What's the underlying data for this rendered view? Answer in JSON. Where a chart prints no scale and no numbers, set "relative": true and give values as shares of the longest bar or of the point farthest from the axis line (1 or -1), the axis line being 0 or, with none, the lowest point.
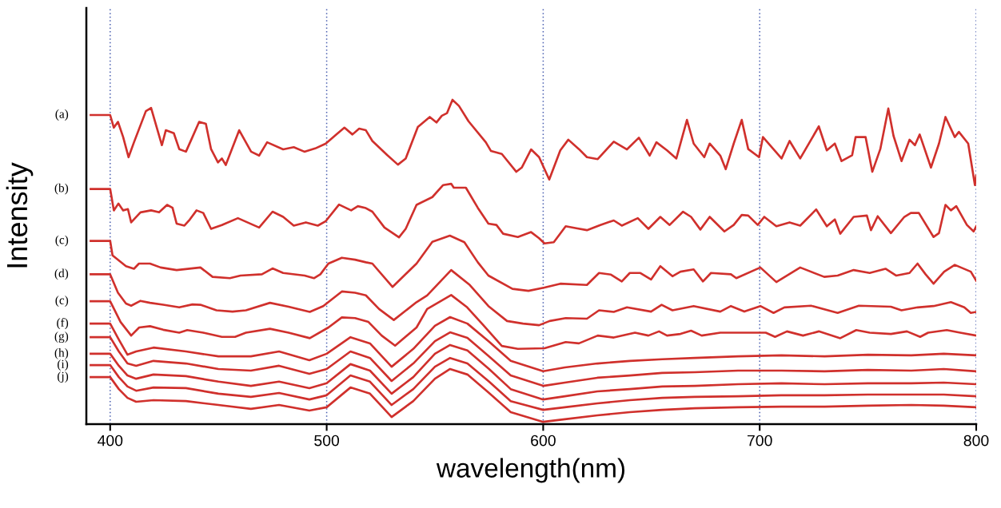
{
  "chart_data": {
    "type": "line",
    "relative": true,
    "xlabel": "wavelength(nm)",
    "ylabel": "Intensity",
    "xlim": [
      389,
      800
    ],
    "xticks": [
      400,
      500,
      600,
      700,
      800
    ],
    "grid": "x",
    "x": [
      391,
      400,
      404,
      408,
      412,
      420,
      435,
      450,
      465,
      478,
      492,
      500,
      511,
      520,
      530,
      540,
      550,
      557,
      565,
      575,
      585,
      600,
      610,
      625,
      640,
      655,
      670,
      690,
      710,
      730,
      750,
      770,
      785,
      800
    ],
    "series": [
      {
        "name": "(a)",
        "color": "#d0302c",
        "x": [
          391,
          400,
          401.7,
          403.6,
          406.0,
          408.5,
          411.0,
          416.5,
          418.9,
          423.9,
          425.7,
          429.4,
          431.9,
          435.0,
          438.0,
          441.1,
          444.2,
          446.6,
          449.8,
          451.6,
          453.4,
          459.6,
          465.1,
          468.8,
          472.5,
          479.9,
          484.8,
          489.7,
          494.7,
          499.6,
          504.5,
          508.2,
          511.9,
          515.0,
          518.1,
          521.1,
          527.9,
          532.9,
          536.5,
          542.1,
          547.6,
          550.7,
          553.2,
          555.6,
          558.1,
          561.1,
          565.5,
          573.5,
          575.9,
          580.9,
          587.6,
          590.1,
          594.4,
          598.1,
          602.8,
          607.9,
          611.6,
          616.5,
          620.2,
          625.2,
          632.6,
          638.7,
          644.2,
          649.2,
          652.3,
          657.2,
          661.5,
          666.4,
          669.5,
          674.4,
          676.9,
          681.8,
          684.3,
          688.0,
          691.7,
          694.7,
          699.7,
          701.5,
          710.1,
          713.8,
          718.7,
          727.3,
          731.0,
          734.7,
          737.8,
          742.7,
          744.3,
          748.9,
          752.0,
          755.7,
          759.4,
          761.8,
          765.5,
          769.2,
          771.7,
          773.9,
          779.1,
          782.8,
          785.8,
          790.1,
          792.0,
          796.3,
          799.4,
          800
        ],
        "values": [
          0.953,
          0.953,
          0.914,
          0.932,
          0.885,
          0.823,
          0.869,
          0.965,
          0.975,
          0.86,
          0.906,
          0.897,
          0.848,
          0.84,
          0.885,
          0.932,
          0.926,
          0.848,
          0.807,
          0.819,
          0.799,
          0.906,
          0.84,
          0.828,
          0.869,
          0.847,
          0.854,
          0.84,
          0.85,
          0.865,
          0.893,
          0.914,
          0.893,
          0.911,
          0.906,
          0.873,
          0.83,
          0.8,
          0.819,
          0.916,
          0.947,
          0.93,
          0.951,
          0.959,
          1,
          0.981,
          0.934,
          0.869,
          0.842,
          0.833,
          0.778,
          0.791,
          0.847,
          0.823,
          0.754,
          0.844,
          0.877,
          0.848,
          0.823,
          0.817,
          0.871,
          0.847,
          0.883,
          0.828,
          0.869,
          0.844,
          0.819,
          0.938,
          0.865,
          0.823,
          0.865,
          0.828,
          0.786,
          0.865,
          0.938,
          0.848,
          0.823,
          0.885,
          0.819,
          0.873,
          0.819,
          0.918,
          0.844,
          0.865,
          0.811,
          0.829,
          0.885,
          0.885,
          0.778,
          0.848,
          0.973,
          0.889,
          0.811,
          0.877,
          0.86,
          0.893,
          0.791,
          0.865,
          0.947,
          0.885,
          0.901,
          0.865,
          0.737,
          0.766
        ]
      },
      {
        "name": "(b)",
        "color": "#d0302c",
        "x": [
          391,
          400,
          401.7,
          403.8,
          406.0,
          408.2,
          409.7,
          414.0,
          418.9,
          422.6,
          426.3,
          428.8,
          430.7,
          434.3,
          436.8,
          439.9,
          443.0,
          446.6,
          451.6,
          459.0,
          468.8,
          475.0,
          479.9,
          484.8,
          490.4,
          495.9,
          499.6,
          505.7,
          511.3,
          514.4,
          518.1,
          521.1,
          526.7,
          533.4,
          536.5,
          541.5,
          548.8,
          553.8,
          557.5,
          558.7,
          564.3,
          569.8,
          574.7,
          578.4,
          581.5,
          588.3,
          594.4,
          598.1,
          600.6,
          604.9,
          610.4,
          615.3,
          620.2,
          626.4,
          632.6,
          636.3,
          643.7,
          648.6,
          654.1,
          658.4,
          664.6,
          668.3,
          672.6,
          676.9,
          683.7,
          688.0,
          691.7,
          694.7,
          699.1,
          702.1,
          707.7,
          713.8,
          718.7,
          726.1,
          731.0,
          734.7,
          737.2,
          743.4,
          749.5,
          751.4,
          754.5,
          760.6,
          766.8,
          769.8,
          773.5,
          780.3,
          782.8,
          785.8,
          788.3,
          790.8,
          795.7,
          798.8,
          800
        ],
        "values": [
          0.725,
          0.725,
          0.659,
          0.68,
          0.659,
          0.663,
          0.622,
          0.653,
          0.659,
          0.653,
          0.676,
          0.667,
          0.618,
          0.612,
          0.631,
          0.659,
          0.651,
          0.602,
          0.614,
          0.635,
          0.606,
          0.655,
          0.639,
          0.612,
          0.622,
          0.612,
          0.626,
          0.677,
          0.659,
          0.672,
          0.666,
          0.655,
          0.606,
          0.576,
          0.602,
          0.676,
          0.7,
          0.737,
          0.741,
          0.729,
          0.729,
          0.667,
          0.618,
          0.614,
          0.587,
          0.577,
          0.592,
          0.573,
          0.557,
          0.561,
          0.61,
          0.604,
          0.598,
          0.614,
          0.628,
          0.612,
          0.635,
          0.602,
          0.639,
          0.614,
          0.655,
          0.639,
          0.6,
          0.639,
          0.594,
          0.614,
          0.645,
          0.643,
          0.614,
          0.639,
          0.61,
          0.622,
          0.612,
          0.662,
          0.61,
          0.631,
          0.587,
          0.639,
          0.643,
          0.598,
          0.641,
          0.589,
          0.639,
          0.651,
          0.651,
          0.577,
          0.589,
          0.676,
          0.659,
          0.672,
          0.614,
          0.594,
          0.61
        ]
      },
      {
        "name": "(c)",
        "color": "#d0302c",
        "x": [
          391,
          400,
          401.1,
          407.3,
          411.0,
          413.3,
          418.4,
          423.3,
          430.7,
          441.7,
          447.3,
          455.3,
          460.2,
          470.1,
          475.0,
          479.9,
          489.8,
          494.1,
          497.1,
          500.8,
          507.0,
          513.1,
          518.1,
          521.1,
          530.4,
          541.5,
          548.8,
          556.9,
          563.6,
          569.8,
          574.7,
          585.8,
          593.2,
          600.6,
          607.9,
          620.2,
          625.8,
          631.3,
          636.3,
          640.0,
          644.9,
          649.8,
          654.1,
          659.7,
          663.4,
          669.5,
          673.8,
          677.5,
          686.7,
          689.2,
          700.3,
          707.7,
          718.7,
          729.8,
          736.0,
          743.4,
          750.8,
          758.1,
          763.1,
          769.2,
          772.9,
          776.6,
          780.3,
          785.2,
          790.1,
          797.5,
          800
        ],
        "values": [
          0.565,
          0.565,
          0.52,
          0.487,
          0.479,
          0.495,
          0.495,
          0.483,
          0.475,
          0.483,
          0.454,
          0.45,
          0.458,
          0.462,
          0.48,
          0.466,
          0.458,
          0.45,
          0.462,
          0.495,
          0.513,
          0.507,
          0.499,
          0.495,
          0.423,
          0.495,
          0.562,
          0.581,
          0.561,
          0.499,
          0.458,
          0.417,
          0.411,
          0.421,
          0.433,
          0.429,
          0.466,
          0.461,
          0.44,
          0.466,
          0.466,
          0.446,
          0.487,
          0.456,
          0.47,
          0.477,
          0.44,
          0.466,
          0.462,
          0.45,
          0.483,
          0.438,
          0.483,
          0.454,
          0.458,
          0.475,
          0.466,
          0.479,
          0.458,
          0.466,
          0.495,
          0.462,
          0.433,
          0.47,
          0.491,
          0.47,
          0.442
        ]
      },
      {
        "name": "(d)",
        "color": "#d0302c",
        "x": [
          391,
          400,
          403.6,
          407.3,
          409.7,
          414.0,
          418.4,
          424.5,
          431.9,
          438.0,
          441.7,
          449.1,
          456.5,
          462.7,
          473.8,
          482.4,
          492.2,
          498.4,
          507.0,
          513.1,
          518.1,
          524.2,
          531.0,
          541.5,
          546.4,
          557.5,
          566.1,
          574.7,
          583.3,
          590.7,
          598.1,
          603.0,
          610.4,
          620.2,
          625.8,
          632.6,
          638.7,
          649.8,
          654.7,
          659.7,
          669.5,
          681.8,
          686.7,
          692.9,
          700.3,
          706.4,
          711.4,
          723.7,
          736.0,
          745.8,
          760.6,
          765.5,
          772.9,
          780.3,
          788.3,
          794.5,
          797.5,
          800
        ],
        "values": [
          0.462,
          0.462,
          0.405,
          0.372,
          0.365,
          0.38,
          0.374,
          0.368,
          0.36,
          0.369,
          0.368,
          0.351,
          0.347,
          0.351,
          0.374,
          0.362,
          0.346,
          0.364,
          0.409,
          0.405,
          0.397,
          0.355,
          0.321,
          0.376,
          0.397,
          0.475,
          0.429,
          0.364,
          0.318,
          0.31,
          0.305,
          0.318,
          0.327,
          0.325,
          0.351,
          0.346,
          0.36,
          0.347,
          0.368,
          0.351,
          0.364,
          0.347,
          0.364,
          0.347,
          0.364,
          0.343,
          0.36,
          0.365,
          0.343,
          0.365,
          0.362,
          0.351,
          0.36,
          0.364,
          0.376,
          0.36,
          0.343,
          0.346
        ]
      },
      {
        "name": "(c)",
        "color": "#d0302c",
        "x": [
          391,
          400,
          404.8,
          409.7,
          413.4,
          418.4,
          424.5,
          431.9,
          435.6,
          443.0,
          451.6,
          457.7,
          462.7,
          473.8,
          482.4,
          492.2,
          500.8,
          507.0,
          513.1,
          519.3,
          525.4,
          531.6,
          541.5,
          546.4,
          557.5,
          564.9,
          572.2,
          580.9,
          588.3,
          600.6,
          610.4,
          616.5,
          625.2,
          632.6,
          642.4,
          648.6,
          653.5,
          657.2,
          663.4,
          668.3,
          673.2,
          681.8,
          690.4,
          702.8,
          707.1,
          712.6,
          720.0,
          727.3,
          737.2,
          744.6,
          750.8,
          760.6,
          768.0,
          774.1,
          777.8,
          786.4,
          792.6,
          800
        ],
        "values": [
          0.379,
          0.379,
          0.315,
          0.273,
          0.298,
          0.302,
          0.291,
          0.282,
          0.29,
          0.282,
          0.269,
          0.269,
          0.282,
          0.294,
          0.282,
          0.265,
          0.298,
          0.329,
          0.327,
          0.315,
          0.273,
          0.242,
          0.298,
          0.355,
          0.398,
          0.36,
          0.306,
          0.241,
          0.232,
          0.234,
          0.253,
          0.249,
          0.273,
          0.267,
          0.282,
          0.273,
          0.286,
          0.273,
          0.278,
          0.288,
          0.273,
          0.282,
          0.282,
          0.282,
          0.269,
          0.286,
          0.273,
          0.286,
          0.265,
          0.29,
          0.282,
          0.278,
          0.286,
          0.269,
          0.282,
          0.29,
          0.282,
          0.273
        ]
      },
      {
        "name": "(f)",
        "color": "#d0302c",
        "values": [
          0.31,
          0.31,
          0.261,
          0.214,
          0.224,
          0.236,
          0.224,
          0.209,
          0.209,
          0.224,
          0.197,
          0.217,
          0.268,
          0.249,
          0.177,
          0.232,
          0.303,
          0.33,
          0.31,
          0.254,
          0.195,
          0.163,
          0.175,
          0.187,
          0.195,
          0.2,
          0.204,
          0.209,
          0.212,
          0.209,
          0.214,
          0.212,
          0.217,
          0.212
        ]
      },
      {
        "name": "(g)",
        "color": "#d0302c",
        "values": [
          0.268,
          0.268,
          0.224,
          0.187,
          0.18,
          0.195,
          0.187,
          0.17,
          0.165,
          0.18,
          0.155,
          0.17,
          0.224,
          0.204,
          0.133,
          0.187,
          0.256,
          0.283,
          0.266,
          0.209,
          0.15,
          0.118,
          0.128,
          0.143,
          0.15,
          0.158,
          0.16,
          0.165,
          0.165,
          0.163,
          0.167,
          0.165,
          0.17,
          0.163
        ]
      },
      {
        "name": "(h)",
        "color": "#d0302c",
        "values": [
          0.217,
          0.217,
          0.18,
          0.15,
          0.14,
          0.153,
          0.148,
          0.131,
          0.118,
          0.131,
          0.111,
          0.126,
          0.185,
          0.165,
          0.094,
          0.145,
          0.217,
          0.244,
          0.227,
          0.17,
          0.108,
          0.076,
          0.086,
          0.101,
          0.108,
          0.116,
          0.118,
          0.123,
          0.126,
          0.123,
          0.126,
          0.126,
          0.128,
          0.123
        ]
      },
      {
        "name": "(i)",
        "color": "#d0302c",
        "values": [
          0.182,
          0.182,
          0.145,
          0.116,
          0.103,
          0.113,
          0.111,
          0.094,
          0.084,
          0.096,
          0.076,
          0.089,
          0.15,
          0.131,
          0.059,
          0.108,
          0.177,
          0.204,
          0.187,
          0.131,
          0.071,
          0.044,
          0.052,
          0.064,
          0.074,
          0.081,
          0.084,
          0.086,
          0.089,
          0.089,
          0.091,
          0.091,
          0.091,
          0.086
        ]
      },
      {
        "name": "(j)",
        "color": "#d0302c",
        "values": [
          0.145,
          0.145,
          0.108,
          0.081,
          0.069,
          0.074,
          0.071,
          0.059,
          0.047,
          0.059,
          0.042,
          0.052,
          0.113,
          0.094,
          0.022,
          0.071,
          0.14,
          0.17,
          0.153,
          0.096,
          0.037,
          0.007,
          0.015,
          0.027,
          0.037,
          0.044,
          0.049,
          0.052,
          0.054,
          0.054,
          0.057,
          0.059,
          0.057,
          0.052
        ]
      }
    ]
  }
}
